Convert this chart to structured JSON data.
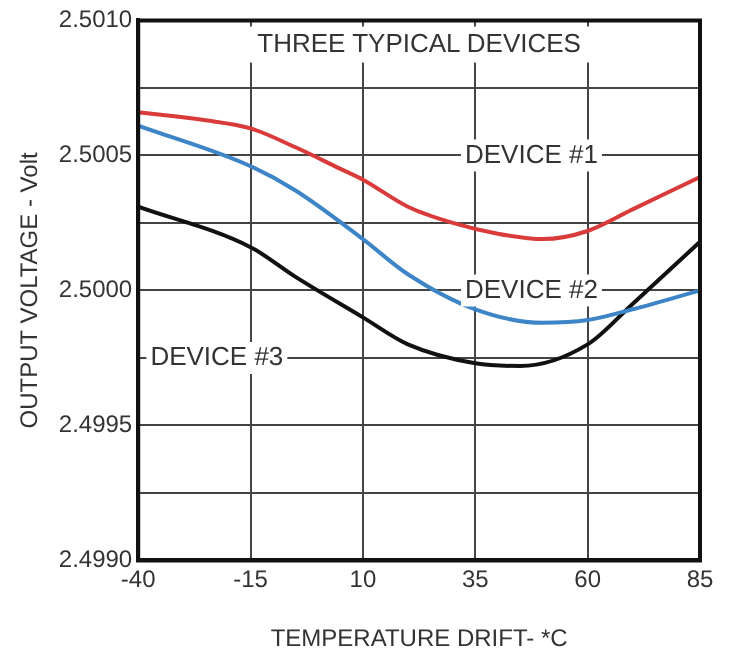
{
  "chart_data": {
    "type": "line",
    "xlabel": "TEMPERATURE DRIFT- *C",
    "ylabel": "OUTPUT VOLTAGE - Volt",
    "series": [
      {
        "name": "DEVICE #1",
        "color": "#d93a3a",
        "x": [
          -40,
          -25,
          -15,
          -5,
          5,
          10,
          20,
          30,
          40,
          50,
          60,
          70,
          85
        ],
        "values": [
          2.50066,
          2.50063,
          2.5006,
          2.50053,
          2.50045,
          2.50041,
          2.50031,
          2.50025,
          2.50021,
          2.50019,
          2.50022,
          2.5003,
          2.50042
        ]
      },
      {
        "name": "DEVICE #2",
        "color": "#3d85c6",
        "x": [
          -40,
          -15,
          -5,
          10,
          20,
          35,
          50,
          60,
          70,
          85
        ],
        "values": [
          2.50061,
          2.50046,
          2.50037,
          2.50019,
          2.50006,
          2.49993,
          2.49988,
          2.49989,
          2.49993,
          2.5
        ]
      },
      {
        "name": "DEVICE #3",
        "color": "#111111",
        "x": [
          -40,
          -15,
          -5,
          10,
          20,
          35,
          45,
          60,
          70,
          85
        ],
        "values": [
          2.50031,
          2.50016,
          2.50005,
          2.4999,
          2.4998,
          2.49973,
          2.49972,
          2.4998,
          2.49995,
          2.50018
        ]
      }
    ],
    "annotations": [
      "THREE TYPICAL DEVICES"
    ],
    "xlim": [
      -40,
      85
    ],
    "xticks": [
      -40,
      -15,
      10,
      35,
      60,
      85
    ],
    "ylim": [
      2.499,
      2.501
    ],
    "yticks": [
      {
        "value": 2.499,
        "label": "2.4990"
      },
      {
        "value": 2.4995,
        "label": "2.4995"
      },
      {
        "value": 2.5,
        "label": "2.5000"
      },
      {
        "value": 2.5005,
        "label": "2.5005"
      },
      {
        "value": 2.501,
        "label": "2.5010"
      }
    ],
    "grid": true,
    "marker": "none",
    "line_style": "solid",
    "legend": false
  }
}
